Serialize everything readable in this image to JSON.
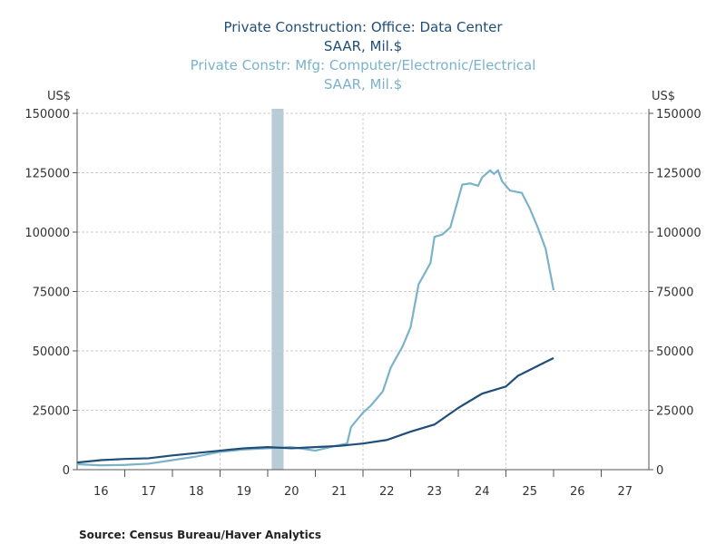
{
  "chart_data": {
    "type": "line",
    "titles": [
      {
        "text": "Private Construction: Office: Data Center",
        "color": "#1f4e79"
      },
      {
        "text": "SAAR, Mil.$",
        "color": "#1f4e79"
      },
      {
        "text": "Private Constr: Mfg: Computer/Electronic/Electrical",
        "color": "#7ab3c9"
      },
      {
        "text": "SAAR, Mil.$",
        "color": "#7ab3c9"
      }
    ],
    "ylabel_left": "US$",
    "ylabel_right": "US$",
    "ylim": [
      0,
      150000
    ],
    "yticks": [
      0,
      25000,
      50000,
      75000,
      100000,
      125000,
      150000
    ],
    "xlim": [
      "2016-01",
      "2027-12"
    ],
    "xtick_labels": [
      "16",
      "17",
      "18",
      "19",
      "20",
      "21",
      "22",
      "23",
      "24",
      "25",
      "26",
      "27"
    ],
    "grid": true,
    "recession": [
      "2020-02",
      "2020-04"
    ],
    "recession_color": "#b8ccd8",
    "source": "Source:  Census Bureau/Haver Analytics",
    "series": [
      {
        "color": "#7ab3c9",
        "points": [
          [
            "2016-01",
            2300
          ],
          [
            "2016-07",
            1800
          ],
          [
            "2017-01",
            2000
          ],
          [
            "2017-07",
            2500
          ],
          [
            "2018-01",
            4000
          ],
          [
            "2018-07",
            5500
          ],
          [
            "2019-01",
            7500
          ],
          [
            "2019-07",
            8500
          ],
          [
            "2020-01",
            9000
          ],
          [
            "2020-07",
            9500
          ],
          [
            "2021-01",
            8000
          ],
          [
            "2021-06",
            10000
          ],
          [
            "2021-09",
            11000
          ],
          [
            "2021-10",
            18000
          ],
          [
            "2022-01",
            24000
          ],
          [
            "2022-03",
            27000
          ],
          [
            "2022-06",
            33000
          ],
          [
            "2022-08",
            43000
          ],
          [
            "2022-11",
            52000
          ],
          [
            "2023-01",
            60000
          ],
          [
            "2023-03",
            78000
          ],
          [
            "2023-06",
            87000
          ],
          [
            "2023-07",
            98000
          ],
          [
            "2023-09",
            99000
          ],
          [
            "2023-11",
            102000
          ],
          [
            "2024-01",
            114000
          ],
          [
            "2024-02",
            120000
          ],
          [
            "2024-04",
            120500
          ],
          [
            "2024-06",
            119500
          ],
          [
            "2024-07",
            123000
          ],
          [
            "2024-09",
            126000
          ],
          [
            "2024-10",
            124500
          ],
          [
            "2024-11",
            126000
          ],
          [
            "2024-12",
            121500
          ],
          [
            "2025-02",
            117500
          ],
          [
            "2025-05",
            116500
          ],
          [
            "2025-07",
            110000
          ],
          [
            "2025-09",
            102000
          ],
          [
            "2025-11",
            93000
          ],
          [
            "2026-01",
            75500
          ]
        ]
      },
      {
        "color": "#1f4e79",
        "points": [
          [
            "2016-01",
            3000
          ],
          [
            "2016-07",
            4000
          ],
          [
            "2017-01",
            4500
          ],
          [
            "2017-07",
            4800
          ],
          [
            "2018-01",
            6000
          ],
          [
            "2018-07",
            7000
          ],
          [
            "2019-01",
            8000
          ],
          [
            "2019-07",
            9000
          ],
          [
            "2020-01",
            9500
          ],
          [
            "2020-07",
            9000
          ],
          [
            "2021-01",
            9500
          ],
          [
            "2021-07",
            10000
          ],
          [
            "2022-01",
            11000
          ],
          [
            "2022-07",
            12500
          ],
          [
            "2023-01",
            16000
          ],
          [
            "2023-07",
            19000
          ],
          [
            "2024-01",
            26000
          ],
          [
            "2024-07",
            32000
          ],
          [
            "2025-01",
            35000
          ],
          [
            "2025-04",
            39500
          ],
          [
            "2025-07",
            42000
          ],
          [
            "2025-10",
            44500
          ],
          [
            "2026-01",
            47000
          ]
        ]
      }
    ]
  }
}
